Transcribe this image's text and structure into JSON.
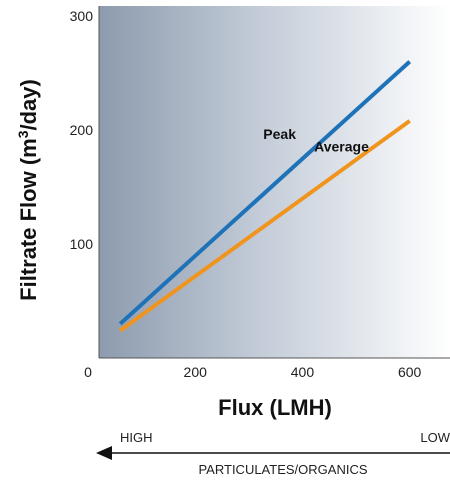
{
  "chart_data": {
    "type": "line",
    "title": "",
    "xlabel": "Flux (LMH)",
    "ylabel_main": "Filtrate Flow (m",
    "ylabel_sup": "3",
    "ylabel_end": "/day)",
    "xlim": [
      0,
      720
    ],
    "ylim": [
      0,
      300
    ],
    "x_ticks": [
      0,
      200,
      400,
      600
    ],
    "y_ticks": [
      100,
      200,
      300
    ],
    "background": "gradient: slate-blue (left) to white (right)",
    "grid": false,
    "series": [
      {
        "name": "Peak",
        "color": "#1d72b8",
        "x": [
          60,
          600
        ],
        "y": [
          30,
          260
        ]
      },
      {
        "name": "Average",
        "color": "#f0941e",
        "x": [
          60,
          600
        ],
        "y": [
          24,
          208
        ]
      }
    ]
  },
  "indicator": {
    "high_label": "HIGH",
    "low_label": "LOW",
    "axis_label": "PARTICULATES/ORGANICS",
    "arrow_direction": "left"
  }
}
